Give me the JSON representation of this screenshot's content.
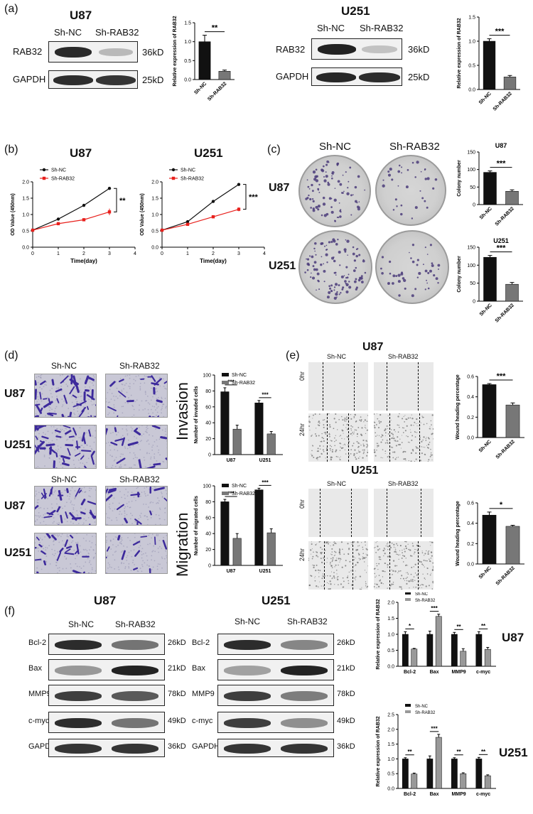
{
  "panel_a": {
    "letter": "(a)",
    "u87": {
      "title": "U87",
      "lanes": [
        "Sh-NC",
        "Sh-RAB32"
      ],
      "rows": [
        {
          "label": "RAB32",
          "size": "36kD"
        },
        {
          "label": "GAPDH",
          "size": "25kD"
        }
      ],
      "bar_ylabel": "Relative expression of RAB32",
      "sig": "**"
    },
    "u251": {
      "title": "U251",
      "lanes": [
        "Sh-NC",
        "Sh-RAB32"
      ],
      "rows": [
        {
          "label": "RAB32",
          "size": "36kD"
        },
        {
          "label": "GAPDH",
          "size": "25kD"
        }
      ],
      "bar_ylabel": "Relative expression of RAB32",
      "sig": "***"
    }
  },
  "panel_b": {
    "letter": "(b)",
    "u87_title": "U87",
    "u251_title": "U251",
    "xlabel": "Time(day)",
    "ylabel": "OD Value (450nm)",
    "legend": [
      "Sh-NC",
      "Sh-RAB32"
    ],
    "sig_u87": "**",
    "sig_u251": "***"
  },
  "panel_c": {
    "letter": "(c)",
    "col_labels": [
      "Sh-NC",
      "Sh-RAB32"
    ],
    "row_labels": [
      "U87",
      "U251"
    ],
    "u87_title": "U87",
    "u251_title": "U251",
    "ylabel": "Colony number",
    "sig": "***"
  },
  "panel_d": {
    "letter": "(d)",
    "col_labels": [
      "Sh-NC",
      "Sh-RAB32"
    ],
    "row_labels": [
      "U87",
      "U251"
    ],
    "invasion": {
      "side_label": "Invasion",
      "ylabel": "Number of invaded cells"
    },
    "migration": {
      "side_label": "Migration",
      "ylabel": "Number of migrated cells"
    },
    "legend": [
      "Sh-NC",
      "Sh-RAB32"
    ],
    "sig": "***"
  },
  "panel_e": {
    "letter": "(e)",
    "u87_title": "U87",
    "u251_title": "U251",
    "col_labels": [
      "Sh-NC",
      "Sh-RAB32"
    ],
    "time_labels": [
      "0hr",
      "24hr"
    ],
    "ylabel": "Wound heading percentage",
    "sig_u87": "***",
    "sig_u251": "*"
  },
  "panel_f": {
    "letter": "(f)",
    "u87_title": "U87",
    "u251_title": "U251",
    "lanes": [
      "Sh-NC",
      "Sh-RAB32"
    ],
    "rows": [
      {
        "label": "Bcl-2",
        "size": "26kD"
      },
      {
        "label": "Bax",
        "size": "21kD"
      },
      {
        "label": "MMP9",
        "size": "78kD"
      },
      {
        "label": "c-myc",
        "size": "49kD"
      },
      {
        "label": "GAPDH",
        "size": "36kD"
      }
    ],
    "bar_ylabel": "Relative expression of RAB32",
    "legend": [
      "Sh-NC",
      "Sh-RAB32"
    ]
  },
  "chart_data": [
    {
      "id": "a_u87",
      "type": "bar",
      "categories": [
        "Sh-NC",
        "Sh-RAB32"
      ],
      "values": [
        1.0,
        0.22
      ],
      "errors": [
        0.17,
        0.03
      ],
      "colors": [
        "#111111",
        "#777777"
      ],
      "ylim": [
        0,
        1.5
      ],
      "yticks": [
        "0.0",
        "0.5",
        "1.0",
        "1.5"
      ],
      "ylabel": "Relative expression of RAB32",
      "sig": "**"
    },
    {
      "id": "a_u251",
      "type": "bar",
      "categories": [
        "Sh-NC",
        "Sh-RAB32"
      ],
      "values": [
        1.0,
        0.26
      ],
      "errors": [
        0.05,
        0.03
      ],
      "colors": [
        "#111111",
        "#777777"
      ],
      "ylim": [
        0,
        1.5
      ],
      "yticks": [
        "0.0",
        "0.5",
        "1.0",
        "1.5"
      ],
      "ylabel": "Relative expression of RAB32",
      "sig": "***"
    },
    {
      "id": "b_u87",
      "type": "line",
      "x": [
        0,
        1,
        2,
        3
      ],
      "xlim": [
        0,
        4
      ],
      "ylim": [
        0,
        2.0
      ],
      "xticks": [
        "0",
        "1",
        "2",
        "3",
        "4"
      ],
      "yticks": [
        "0.0",
        "0.5",
        "1.0",
        "1.5",
        "2.0"
      ],
      "xlabel": "Time(day)",
      "ylabel": "OD Value (450nm)",
      "series": [
        {
          "name": "Sh-NC",
          "values": [
            0.52,
            0.86,
            1.28,
            1.8
          ],
          "errors": [
            0.02,
            0.02,
            0.02,
            0.02
          ],
          "color": "#111111",
          "marker": "circle"
        },
        {
          "name": "Sh-RAB32",
          "values": [
            0.52,
            0.72,
            0.84,
            1.08
          ],
          "errors": [
            0.02,
            0.03,
            0.04,
            0.1
          ],
          "color": "#e8201c",
          "marker": "square"
        }
      ],
      "sig": "**"
    },
    {
      "id": "b_u251",
      "type": "line",
      "x": [
        0,
        1,
        2,
        3
      ],
      "xlim": [
        0,
        4
      ],
      "ylim": [
        0,
        2.0
      ],
      "xticks": [
        "0",
        "1",
        "2",
        "3",
        "4"
      ],
      "yticks": [
        "0.0",
        "0.5",
        "1.0",
        "1.5",
        "2.0"
      ],
      "xlabel": "Time(day)",
      "ylabel": "OD Value (450nm)",
      "series": [
        {
          "name": "Sh-NC",
          "values": [
            0.52,
            0.78,
            1.4,
            1.92
          ],
          "errors": [
            0.02,
            0.02,
            0.03,
            0.02
          ],
          "color": "#111111",
          "marker": "circle"
        },
        {
          "name": "Sh-RAB32",
          "values": [
            0.52,
            0.7,
            0.93,
            1.16
          ],
          "errors": [
            0.02,
            0.02,
            0.03,
            0.06
          ],
          "color": "#e8201c",
          "marker": "square"
        }
      ],
      "sig": "***"
    },
    {
      "id": "c_u87",
      "type": "bar",
      "title": "U87",
      "categories": [
        "Sh-NC",
        "Sh-RAB32"
      ],
      "values": [
        92,
        38
      ],
      "errors": [
        4,
        4
      ],
      "colors": [
        "#111111",
        "#777777"
      ],
      "ylim": [
        0,
        150
      ],
      "yticks": [
        "0",
        "50",
        "100",
        "150"
      ],
      "ylabel": "Colony number",
      "sig": "***"
    },
    {
      "id": "c_u251",
      "type": "bar",
      "title": "U251",
      "categories": [
        "Sh-NC",
        "Sh-RAB32"
      ],
      "values": [
        122,
        47
      ],
      "errors": [
        5,
        5
      ],
      "colors": [
        "#111111",
        "#777777"
      ],
      "ylim": [
        0,
        150
      ],
      "yticks": [
        "0",
        "50",
        "100",
        "150"
      ],
      "ylabel": "Colony number",
      "sig": "***"
    },
    {
      "id": "d_inv",
      "type": "bar",
      "categories": [
        "U87",
        "U251"
      ],
      "series": [
        {
          "name": "Sh-NC",
          "values": [
            79,
            65
          ],
          "errors": [
            5,
            3
          ],
          "color": "#111111"
        },
        {
          "name": "Sh-RAB32",
          "values": [
            32,
            26
          ],
          "errors": [
            5,
            3
          ],
          "color": "#777777"
        }
      ],
      "ylim": [
        0,
        100
      ],
      "yticks": [
        "0",
        "20",
        "40",
        "60",
        "80",
        "100"
      ],
      "ylabel": "Number of invaded cells",
      "sig": [
        "***",
        "***"
      ]
    },
    {
      "id": "d_mig",
      "type": "bar",
      "categories": [
        "U87",
        "U251"
      ],
      "series": [
        {
          "name": "Sh-NC",
          "values": [
            80,
            95
          ],
          "errors": [
            3,
            2
          ],
          "color": "#111111"
        },
        {
          "name": "Sh-RAB32",
          "values": [
            34,
            41
          ],
          "errors": [
            6,
            5
          ],
          "color": "#777777"
        }
      ],
      "ylim": [
        0,
        100
      ],
      "yticks": [
        "0",
        "20",
        "40",
        "60",
        "80",
        "100"
      ],
      "ylabel": "Number of migrated cells",
      "sig": [
        "***",
        "***"
      ]
    },
    {
      "id": "e_u87",
      "type": "bar",
      "categories": [
        "Sh-NC",
        "Sh-RAB32"
      ],
      "values": [
        0.52,
        0.32
      ],
      "errors": [
        0.01,
        0.02
      ],
      "colors": [
        "#111111",
        "#777777"
      ],
      "ylim": [
        0,
        0.6
      ],
      "yticks": [
        "0.0",
        "0.2",
        "0.4",
        "0.6"
      ],
      "ylabel": "Wound heading percentage",
      "sig": "***"
    },
    {
      "id": "e_u251",
      "type": "bar",
      "categories": [
        "Sh-NC",
        "Sh-RAB32"
      ],
      "values": [
        0.48,
        0.37
      ],
      "errors": [
        0.03,
        0.01
      ],
      "colors": [
        "#111111",
        "#777777"
      ],
      "ylim": [
        0,
        0.6
      ],
      "yticks": [
        "0.0",
        "0.2",
        "0.4",
        "0.6"
      ],
      "ylabel": "Wound heading percentage",
      "sig": "*"
    },
    {
      "id": "f_u87",
      "type": "bar",
      "categories": [
        "Bcl-2",
        "Bax",
        "MMP9",
        "c-myc"
      ],
      "series": [
        {
          "name": "Sh-NC",
          "values": [
            1.0,
            1.0,
            1.0,
            1.0
          ],
          "errors": [
            0.08,
            0.1,
            0.06,
            0.08
          ],
          "color": "#111111"
        },
        {
          "name": "Sh-RAB32",
          "values": [
            0.54,
            1.56,
            0.47,
            0.53
          ],
          "errors": [
            0.02,
            0.07,
            0.08,
            0.06
          ],
          "color": "#999999"
        }
      ],
      "ylim": [
        0,
        2.0
      ],
      "yticks": [
        "0.0",
        "0.5",
        "1.0",
        "1.5",
        "2.0"
      ],
      "ylabel": "Relative expression of RAB32",
      "sig": [
        "*",
        "***",
        "**",
        "**"
      ]
    },
    {
      "id": "f_u251",
      "type": "bar",
      "categories": [
        "Bcl-2",
        "Bax",
        "MMP9",
        "c-myc"
      ],
      "series": [
        {
          "name": "Sh-NC",
          "values": [
            1.0,
            1.0,
            1.0,
            1.0
          ],
          "errors": [
            0.04,
            0.1,
            0.04,
            0.05
          ],
          "color": "#111111"
        },
        {
          "name": "Sh-RAB32",
          "values": [
            0.49,
            1.73,
            0.5,
            0.43
          ],
          "errors": [
            0.03,
            0.1,
            0.03,
            0.03
          ],
          "color": "#999999"
        }
      ],
      "ylim": [
        0,
        2.5
      ],
      "yticks": [
        "0.0",
        "0.5",
        "1.0",
        "1.5",
        "2.0",
        "2.5"
      ],
      "ylabel": "Relative expression of RAB32",
      "sig": [
        "**",
        "***",
        "**",
        "**"
      ]
    }
  ]
}
